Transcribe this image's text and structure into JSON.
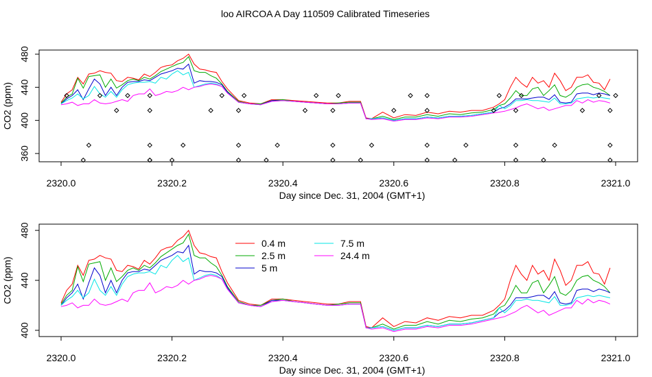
{
  "title": "loo AIRCOA A  Day 110509  Calibrated Timeseries",
  "chart_data": [
    {
      "type": "line",
      "xlabel": "Day since Dec. 31, 2004 (GMT+1)",
      "ylabel": "CO2 (ppm)",
      "xlim": [
        2320.0,
        2321.0
      ],
      "ylim": [
        350,
        485
      ],
      "xticks": [
        "2320.0",
        "2320.2",
        "2320.4",
        "2320.6",
        "2320.8",
        "2321.0"
      ],
      "yticks": [
        "360",
        "400",
        "440",
        "480"
      ],
      "grid": false,
      "series": [
        {
          "name": "0.4 m",
          "color": "#ff0000",
          "x": [
            2320.0,
            2320.01,
            2320.02,
            2320.03,
            2320.04,
            2320.05,
            2320.06,
            2320.07,
            2320.08,
            2320.09,
            2320.1,
            2320.11,
            2320.12,
            2320.13,
            2320.14,
            2320.15,
            2320.16,
            2320.17,
            2320.18,
            2320.19,
            2320.2,
            2320.21,
            2320.22,
            2320.23,
            2320.24,
            2320.25,
            2320.26,
            2320.27,
            2320.28,
            2320.29,
            2320.3,
            2320.32,
            2320.34,
            2320.36,
            2320.38,
            2320.4,
            2320.42,
            2320.44,
            2320.46,
            2320.48,
            2320.5,
            2320.52,
            2320.54,
            2320.55,
            2320.56,
            2320.58,
            2320.6,
            2320.62,
            2320.64,
            2320.66,
            2320.68,
            2320.7,
            2320.72,
            2320.74,
            2320.76,
            2320.78,
            2320.79,
            2320.8,
            2320.81,
            2320.82,
            2320.83,
            2320.84,
            2320.85,
            2320.86,
            2320.87,
            2320.88,
            2320.89,
            2320.9,
            2320.91,
            2320.92,
            2320.93,
            2320.94,
            2320.95,
            2320.96,
            2320.97,
            2320.98,
            2320.99
          ],
          "y": [
            422,
            432,
            437,
            452,
            444,
            456,
            457,
            460,
            458,
            457,
            448,
            447,
            452,
            451,
            449,
            456,
            453,
            458,
            464,
            466,
            467,
            472,
            475,
            480,
            468,
            462,
            461,
            459,
            458,
            447,
            438,
            424,
            421,
            420,
            425,
            425,
            424,
            423,
            422,
            421,
            421,
            423,
            423,
            403,
            402,
            410,
            403,
            407,
            406,
            410,
            408,
            411,
            410,
            412,
            412,
            416,
            420,
            425,
            440,
            452,
            445,
            440,
            452,
            445,
            448,
            440,
            457,
            448,
            436,
            440,
            452,
            452,
            455,
            446,
            445,
            437,
            450
          ]
        },
        {
          "name": "2.5 m",
          "color": "#00aa00",
          "x": [
            2320.0,
            2320.01,
            2320.02,
            2320.03,
            2320.04,
            2320.05,
            2320.06,
            2320.07,
            2320.08,
            2320.09,
            2320.1,
            2320.11,
            2320.12,
            2320.13,
            2320.14,
            2320.15,
            2320.16,
            2320.17,
            2320.18,
            2320.19,
            2320.2,
            2320.21,
            2320.22,
            2320.23,
            2320.24,
            2320.25,
            2320.26,
            2320.27,
            2320.28,
            2320.29,
            2320.3,
            2320.32,
            2320.34,
            2320.36,
            2320.38,
            2320.4,
            2320.42,
            2320.44,
            2320.46,
            2320.48,
            2320.5,
            2320.52,
            2320.54,
            2320.55,
            2320.56,
            2320.58,
            2320.6,
            2320.62,
            2320.64,
            2320.66,
            2320.68,
            2320.7,
            2320.72,
            2320.74,
            2320.76,
            2320.78,
            2320.79,
            2320.8,
            2320.81,
            2320.82,
            2320.83,
            2320.84,
            2320.85,
            2320.86,
            2320.87,
            2320.88,
            2320.89,
            2320.9,
            2320.91,
            2320.92,
            2320.93,
            2320.94,
            2320.95,
            2320.96,
            2320.97,
            2320.98,
            2320.99
          ],
          "y": [
            421,
            428,
            432,
            451,
            439,
            453,
            454,
            455,
            440,
            450,
            439,
            443,
            448,
            450,
            448,
            452,
            450,
            454,
            459,
            462,
            465,
            468,
            470,
            477,
            460,
            458,
            458,
            454,
            451,
            444,
            435,
            423,
            420,
            420,
            424,
            425,
            423,
            422,
            421,
            420,
            421,
            422,
            422,
            402,
            402,
            405,
            401,
            404,
            404,
            407,
            405,
            408,
            407,
            409,
            410,
            413,
            418,
            420,
            427,
            436,
            430,
            430,
            438,
            440,
            430,
            436,
            443,
            430,
            428,
            432,
            440,
            443,
            444,
            440,
            438,
            435,
            430
          ]
        },
        {
          "name": "5 m",
          "color": "#0000cc",
          "x": [
            2320.0,
            2320.01,
            2320.02,
            2320.03,
            2320.04,
            2320.05,
            2320.06,
            2320.07,
            2320.08,
            2320.09,
            2320.1,
            2320.11,
            2320.12,
            2320.13,
            2320.14,
            2320.15,
            2320.16,
            2320.17,
            2320.18,
            2320.19,
            2320.2,
            2320.21,
            2320.22,
            2320.23,
            2320.24,
            2320.25,
            2320.26,
            2320.27,
            2320.28,
            2320.29,
            2320.3,
            2320.32,
            2320.34,
            2320.36,
            2320.38,
            2320.4,
            2320.42,
            2320.44,
            2320.46,
            2320.48,
            2320.5,
            2320.52,
            2320.54,
            2320.55,
            2320.56,
            2320.58,
            2320.6,
            2320.62,
            2320.64,
            2320.66,
            2320.68,
            2320.7,
            2320.72,
            2320.74,
            2320.76,
            2320.78,
            2320.79,
            2320.8,
            2320.81,
            2320.82,
            2320.83,
            2320.84,
            2320.85,
            2320.86,
            2320.87,
            2320.88,
            2320.89,
            2320.9,
            2320.91,
            2320.92,
            2320.93,
            2320.94,
            2320.95,
            2320.96,
            2320.97,
            2320.98,
            2320.99
          ],
          "y": [
            420,
            426,
            430,
            437,
            425,
            438,
            450,
            444,
            430,
            440,
            430,
            440,
            446,
            447,
            447,
            449,
            448,
            452,
            456,
            458,
            460,
            463,
            462,
            468,
            445,
            448,
            447,
            447,
            446,
            443,
            434,
            422,
            420,
            419,
            424,
            424,
            423,
            422,
            421,
            420,
            420,
            421,
            421,
            402,
            402,
            403,
            400,
            402,
            402,
            404,
            403,
            405,
            405,
            406,
            408,
            410,
            414,
            416,
            420,
            426,
            426,
            426,
            427,
            428,
            428,
            425,
            431,
            422,
            421,
            422,
            432,
            433,
            433,
            431,
            433,
            432,
            430
          ]
        },
        {
          "name": "7.5 m",
          "color": "#00e5e5",
          "x": [
            2320.0,
            2320.01,
            2320.02,
            2320.03,
            2320.04,
            2320.05,
            2320.06,
            2320.07,
            2320.08,
            2320.09,
            2320.1,
            2320.11,
            2320.12,
            2320.13,
            2320.14,
            2320.15,
            2320.16,
            2320.17,
            2320.18,
            2320.19,
            2320.2,
            2320.21,
            2320.22,
            2320.23,
            2320.24,
            2320.25,
            2320.26,
            2320.27,
            2320.28,
            2320.29,
            2320.3,
            2320.32,
            2320.34,
            2320.36,
            2320.38,
            2320.4,
            2320.42,
            2320.44,
            2320.46,
            2320.48,
            2320.5,
            2320.52,
            2320.54,
            2320.55,
            2320.56,
            2320.58,
            2320.6,
            2320.62,
            2320.64,
            2320.66,
            2320.68,
            2320.7,
            2320.72,
            2320.74,
            2320.76,
            2320.78,
            2320.79,
            2320.8,
            2320.81,
            2320.82,
            2320.83,
            2320.84,
            2320.85,
            2320.86,
            2320.87,
            2320.88,
            2320.89,
            2320.9,
            2320.91,
            2320.92,
            2320.93,
            2320.94,
            2320.95,
            2320.96,
            2320.97,
            2320.98,
            2320.99
          ],
          "y": [
            420,
            424,
            427,
            432,
            426,
            430,
            441,
            432,
            428,
            435,
            428,
            437,
            443,
            445,
            446,
            446,
            447,
            445,
            452,
            450,
            456,
            460,
            455,
            458,
            440,
            442,
            444,
            445,
            444,
            441,
            433,
            422,
            420,
            419,
            423,
            424,
            423,
            422,
            421,
            420,
            420,
            421,
            421,
            402,
            402,
            403,
            400,
            402,
            402,
            404,
            403,
            405,
            405,
            406,
            408,
            410,
            418,
            414,
            418,
            424,
            424,
            425,
            424,
            424,
            423,
            422,
            427,
            420,
            420,
            421,
            426,
            427,
            428,
            427,
            428,
            427,
            426
          ]
        },
        {
          "name": "24.4 m",
          "color": "#ff00ff",
          "x": [
            2320.0,
            2320.01,
            2320.02,
            2320.03,
            2320.04,
            2320.05,
            2320.06,
            2320.07,
            2320.08,
            2320.09,
            2320.1,
            2320.11,
            2320.12,
            2320.13,
            2320.14,
            2320.15,
            2320.16,
            2320.17,
            2320.18,
            2320.19,
            2320.2,
            2320.21,
            2320.22,
            2320.23,
            2320.24,
            2320.25,
            2320.26,
            2320.27,
            2320.28,
            2320.29,
            2320.3,
            2320.32,
            2320.34,
            2320.36,
            2320.38,
            2320.4,
            2320.42,
            2320.44,
            2320.46,
            2320.48,
            2320.5,
            2320.52,
            2320.54,
            2320.55,
            2320.56,
            2320.58,
            2320.6,
            2320.62,
            2320.64,
            2320.66,
            2320.68,
            2320.7,
            2320.72,
            2320.74,
            2320.76,
            2320.78,
            2320.79,
            2320.8,
            2320.81,
            2320.82,
            2320.83,
            2320.84,
            2320.85,
            2320.86,
            2320.87,
            2320.88,
            2320.89,
            2320.9,
            2320.91,
            2320.92,
            2320.93,
            2320.94,
            2320.95,
            2320.96,
            2320.97,
            2320.98,
            2320.99
          ],
          "y": [
            419,
            420,
            422,
            418,
            420,
            420,
            425,
            421,
            420,
            421,
            423,
            425,
            423,
            430,
            432,
            432,
            438,
            430,
            432,
            435,
            434,
            436,
            440,
            437,
            440,
            441,
            443,
            444,
            443,
            441,
            433,
            422,
            420,
            419,
            423,
            424,
            423,
            422,
            421,
            420,
            420,
            421,
            421,
            402,
            401,
            402,
            399,
            401,
            401,
            403,
            402,
            404,
            404,
            405,
            407,
            409,
            410,
            411,
            413,
            415,
            418,
            420,
            417,
            414,
            416,
            412,
            414,
            416,
            418,
            418,
            424,
            421,
            425,
            422,
            424,
            423,
            421
          ]
        }
      ],
      "points": {
        "marker": "diamond-open",
        "x": [
          2320.01,
          2320.04,
          2320.05,
          2320.07,
          2320.1,
          2320.12,
          2320.16,
          2320.16,
          2320.16,
          2320.16,
          2320.16,
          2320.2,
          2320.22,
          2320.27,
          2320.29,
          2320.32,
          2320.32,
          2320.32,
          2320.33,
          2320.37,
          2320.39,
          2320.44,
          2320.46,
          2320.49,
          2320.49,
          2320.49,
          2320.5,
          2320.54,
          2320.56,
          2320.6,
          2320.63,
          2320.66,
          2320.66,
          2320.66,
          2320.66,
          2320.71,
          2320.73,
          2320.78,
          2320.79,
          2320.82,
          2320.82,
          2320.82,
          2320.83,
          2320.87,
          2320.89,
          2320.94,
          2320.97,
          2320.99,
          2320.99,
          2320.99,
          2321.0
        ],
        "y": [
          430,
          352,
          370,
          430,
          412,
          430,
          352,
          370,
          412,
          430,
          352,
          352,
          370,
          412,
          430,
          352,
          370,
          412,
          430,
          352,
          370,
          412,
          430,
          352,
          370,
          412,
          430,
          352,
          370,
          412,
          430,
          352,
          370,
          412,
          430,
          352,
          370,
          412,
          430,
          352,
          370,
          412,
          430,
          352,
          370,
          412,
          430,
          352,
          370,
          412,
          430
        ]
      }
    },
    {
      "type": "line",
      "xlabel": "Day since Dec. 31, 2004 (GMT+1)",
      "ylabel": "CO2 (ppm)",
      "xlim": [
        2320.0,
        2321.0
      ],
      "ylim": [
        395,
        485
      ],
      "xticks": [
        "2320.0",
        "2320.2",
        "2320.4",
        "2320.6",
        "2320.8",
        "2321.0"
      ],
      "yticks": [
        "400",
        "440",
        "480"
      ],
      "grid": false,
      "legend": "inside-top",
      "series_ref": "same series as first panel"
    }
  ]
}
